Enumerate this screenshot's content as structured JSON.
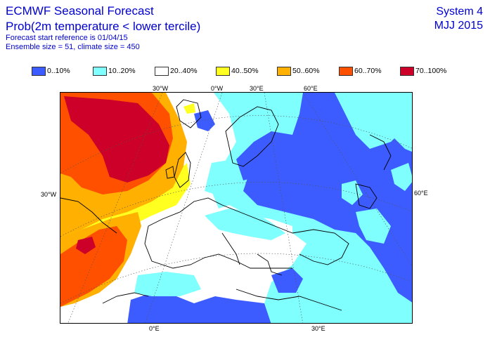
{
  "header": {
    "title": "ECMWF Seasonal Forecast",
    "subtitle": "Prob(2m temperature < lower tercile)",
    "start_ref": "Forecast start reference is 01/04/15",
    "ensemble": "Ensemble size = 51, climate size = 450",
    "system": "System 4",
    "season": "MJJ 2015"
  },
  "legend": [
    {
      "label": "0..10%",
      "color": "#3c5cff"
    },
    {
      "label": "10..20%",
      "color": "#80ffff"
    },
    {
      "label": "20..40%",
      "color": "#ffffff"
    },
    {
      "label": "40..50%",
      "color": "#ffff20"
    },
    {
      "label": "50..60%",
      "color": "#ffb000"
    },
    {
      "label": "60..70%",
      "color": "#ff5000"
    },
    {
      "label": "70..100%",
      "color": "#cc0028"
    }
  ],
  "map": {
    "top_labels": [
      "30°W",
      "0°W",
      "30°E",
      "60°E"
    ],
    "left_label": "30°W",
    "right_label": "60°E",
    "bottom_labels": [
      "0°E",
      "30°E"
    ]
  }
}
